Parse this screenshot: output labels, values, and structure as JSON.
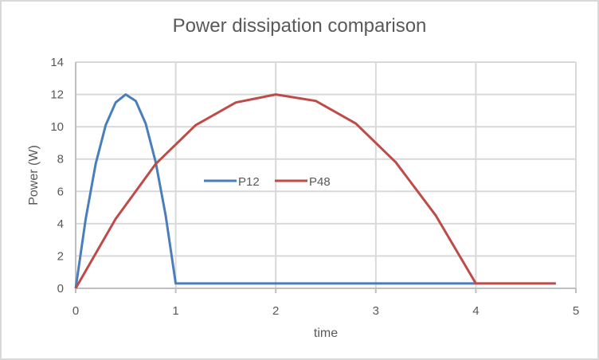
{
  "chart": {
    "title": "Power dissipation comparison",
    "xlabel": "time",
    "ylabel": "Power (W)"
  },
  "colors": {
    "P12": "#4a7ebb",
    "P48": "#be4b48",
    "grid": "#d9d9d9",
    "axis": "#bfbfbf",
    "text": "#595959"
  },
  "chart_data": {
    "type": "line",
    "title": "Power dissipation comparison",
    "xlabel": "time",
    "ylabel": "Power (W)",
    "xlim": [
      0,
      5
    ],
    "ylim": [
      0,
      14
    ],
    "xticks": [
      0,
      1,
      2,
      3,
      4,
      5
    ],
    "yticks": [
      0,
      2,
      4,
      6,
      8,
      10,
      12,
      14
    ],
    "grid": true,
    "legend_position": "inside-center-left",
    "series": [
      {
        "name": "P12",
        "color": "#4a7ebb",
        "x": [
          0,
          0.1,
          0.2,
          0.3,
          0.4,
          0.5,
          0.6,
          0.7,
          0.8,
          0.9,
          1.0,
          4.0
        ],
        "y": [
          0,
          4.3,
          7.7,
          10.1,
          11.5,
          12.0,
          11.6,
          10.2,
          7.8,
          4.5,
          0.3,
          0.3
        ]
      },
      {
        "name": "P48",
        "color": "#be4b48",
        "x": [
          0,
          0.4,
          0.8,
          1.2,
          1.6,
          2.0,
          2.4,
          2.8,
          3.2,
          3.6,
          4.0,
          4.8
        ],
        "y": [
          0,
          4.3,
          7.7,
          10.1,
          11.5,
          12.0,
          11.6,
          10.2,
          7.8,
          4.5,
          0.3,
          0.3
        ]
      }
    ]
  }
}
